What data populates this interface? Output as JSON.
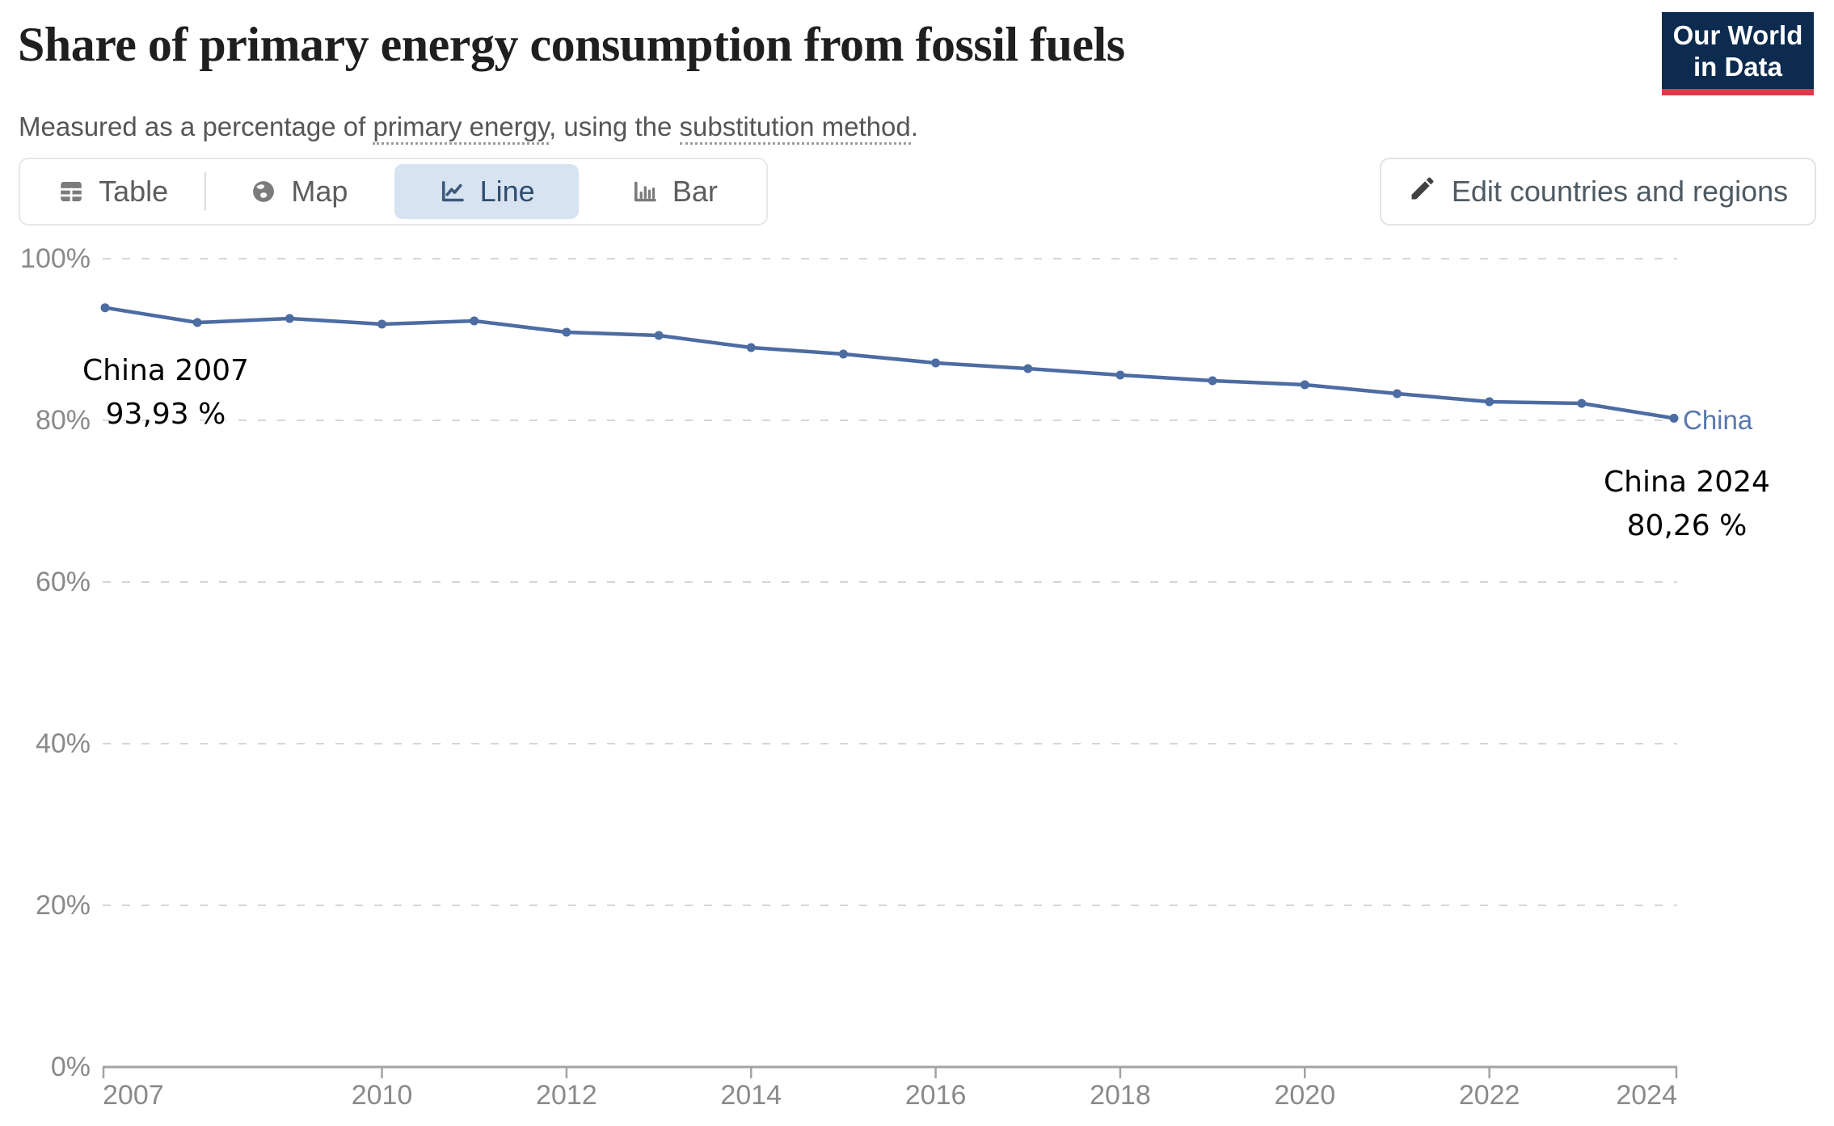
{
  "header": {
    "title": "Share of primary energy consumption from fossil fuels",
    "subtitle": {
      "part1": "Measured as a percentage of ",
      "link1": "primary energy",
      "part2": ", using the ",
      "link2": "substitution method",
      "part3": "."
    }
  },
  "logo": {
    "line1": "Our World",
    "line2": "in Data"
  },
  "toolbar": {
    "tabs": [
      {
        "label": "Table",
        "icon": "table-icon",
        "active": false
      },
      {
        "label": "Map",
        "icon": "globe-icon",
        "active": false
      },
      {
        "label": "Line",
        "icon": "line-chart-icon",
        "active": true
      },
      {
        "label": "Bar",
        "icon": "bar-chart-icon",
        "active": false
      }
    ],
    "edit_button_label": "Edit countries and regions"
  },
  "colors": {
    "series_line": "#4c6ca2",
    "series_label": "#5878ae",
    "active_tab_bg": "#d8e3f1",
    "active_tab_text": "#2f4e6e",
    "logo_navy": "#0c2b4e",
    "logo_red": "#dc3b4e",
    "grid": "#d6d6d6",
    "axis": "#a3a3a3",
    "tick_label": "#8a8a8a"
  },
  "chart_data": {
    "type": "line",
    "title": "Share of primary energy consumption from fossil fuels",
    "xlabel": "",
    "ylabel": "",
    "unit": "%",
    "ylim": [
      0,
      100
    ],
    "xlim": [
      2007,
      2024
    ],
    "grid": "horizontal-dashed",
    "legend_position": "end-of-line-label",
    "y_ticks": [
      0,
      20,
      40,
      60,
      80,
      100
    ],
    "y_tick_labels": [
      "0%",
      "20%",
      "40%",
      "60%",
      "80%",
      "100%"
    ],
    "x_ticks": [
      2007,
      2010,
      2012,
      2014,
      2016,
      2018,
      2020,
      2022,
      2024
    ],
    "x_tick_labels": [
      "2007",
      "2010",
      "2012",
      "2014",
      "2016",
      "2018",
      "2020",
      "2022",
      "2024"
    ],
    "series": [
      {
        "name": "China",
        "color": "#4c6ca2",
        "x": [
          2007,
          2008,
          2009,
          2010,
          2011,
          2012,
          2013,
          2014,
          2015,
          2016,
          2017,
          2018,
          2019,
          2020,
          2021,
          2022,
          2023,
          2024
        ],
        "values": [
          93.93,
          92.1,
          92.6,
          91.9,
          92.3,
          90.9,
          90.5,
          89.0,
          88.2,
          87.1,
          86.4,
          85.6,
          84.9,
          84.4,
          83.3,
          82.3,
          82.1,
          80.26
        ]
      }
    ],
    "annotations": [
      {
        "text": "China 2007",
        "value_text": "93,93 %",
        "x": 2007,
        "y": 93.93
      },
      {
        "text": "China 2024",
        "value_text": "80,26 %",
        "x": 2024,
        "y": 80.26
      }
    ],
    "end_label": "China"
  }
}
